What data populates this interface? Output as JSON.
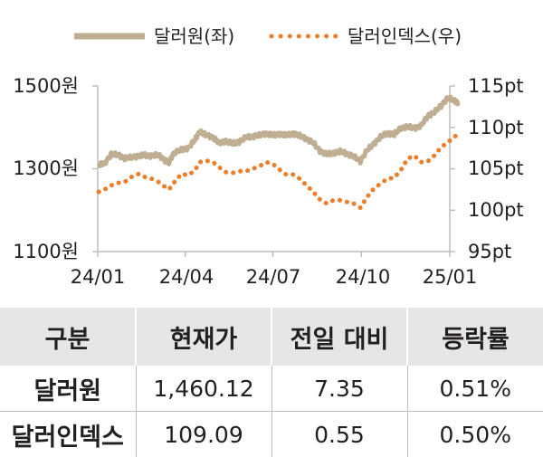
{
  "chart_data": {
    "type": "line",
    "colors": {
      "dollar_won": "#bfae92",
      "dollar_index": "#ee7d2a"
    },
    "legend": {
      "position": "top",
      "dollar_won_label": "달러원(좌)",
      "dollar_index_label": "달러인덱스(우)"
    },
    "x_ticks": [
      "24/01",
      "24/04",
      "24/07",
      "24/10",
      "25/01"
    ],
    "y_left": {
      "ticks": [
        "1500원",
        "1300원",
        "1100원"
      ],
      "range": [
        1100,
        1500
      ]
    },
    "y_right": {
      "ticks": [
        "115pt",
        "110pt",
        "105pt",
        "100pt",
        "95pt"
      ],
      "range": [
        95,
        115
      ]
    },
    "grid": false,
    "series": [
      {
        "name": "달러원(좌)",
        "axis": "left",
        "style": "solid",
        "points": [
          [
            "2024-01-02",
            1310
          ],
          [
            "2024-01-08",
            1312
          ],
          [
            "2024-01-15",
            1335
          ],
          [
            "2024-01-22",
            1334
          ],
          [
            "2024-01-29",
            1325
          ],
          [
            "2024-02-05",
            1328
          ],
          [
            "2024-02-13",
            1331
          ],
          [
            "2024-02-19",
            1333
          ],
          [
            "2024-02-26",
            1331
          ],
          [
            "2024-03-04",
            1334
          ],
          [
            "2024-03-11",
            1320
          ],
          [
            "2024-03-15",
            1315
          ],
          [
            "2024-03-20",
            1338
          ],
          [
            "2024-03-28",
            1346
          ],
          [
            "2024-04-04",
            1350
          ],
          [
            "2024-04-11",
            1370
          ],
          [
            "2024-04-16",
            1390
          ],
          [
            "2024-04-22",
            1382
          ],
          [
            "2024-04-30",
            1376
          ],
          [
            "2024-05-06",
            1362
          ],
          [
            "2024-05-13",
            1367
          ],
          [
            "2024-05-20",
            1361
          ],
          [
            "2024-05-27",
            1365
          ],
          [
            "2024-06-03",
            1376
          ],
          [
            "2024-06-10",
            1378
          ],
          [
            "2024-06-17",
            1381
          ],
          [
            "2024-06-24",
            1385
          ],
          [
            "2024-07-01",
            1381
          ],
          [
            "2024-07-08",
            1384
          ],
          [
            "2024-07-15",
            1381
          ],
          [
            "2024-07-22",
            1385
          ],
          [
            "2024-07-29",
            1380
          ],
          [
            "2024-08-05",
            1372
          ],
          [
            "2024-08-12",
            1363
          ],
          [
            "2024-08-19",
            1343
          ],
          [
            "2024-08-26",
            1335
          ],
          [
            "2024-09-02",
            1338
          ],
          [
            "2024-09-09",
            1342
          ],
          [
            "2024-09-16",
            1336
          ],
          [
            "2024-09-23",
            1330
          ],
          [
            "2024-09-30",
            1318
          ],
          [
            "2024-10-07",
            1345
          ],
          [
            "2024-10-14",
            1360
          ],
          [
            "2024-10-21",
            1377
          ],
          [
            "2024-10-28",
            1386
          ],
          [
            "2024-11-04",
            1383
          ],
          [
            "2024-11-11",
            1398
          ],
          [
            "2024-11-18",
            1402
          ],
          [
            "2024-11-25",
            1398
          ],
          [
            "2024-12-02",
            1404
          ],
          [
            "2024-12-09",
            1427
          ],
          [
            "2024-12-16",
            1437
          ],
          [
            "2024-12-23",
            1452
          ],
          [
            "2024-12-30",
            1472
          ],
          [
            "2025-01-06",
            1464
          ],
          [
            "2025-01-10",
            1460.12
          ]
        ]
      },
      {
        "name": "달러인덱스(우)",
        "axis": "right",
        "style": "dotted",
        "points": [
          [
            "2024-01-02",
            102.2
          ],
          [
            "2024-01-08",
            102.5
          ],
          [
            "2024-01-15",
            103.0
          ],
          [
            "2024-01-22",
            103.3
          ],
          [
            "2024-01-29",
            103.4
          ],
          [
            "2024-02-05",
            104.0
          ],
          [
            "2024-02-13",
            104.4
          ],
          [
            "2024-02-19",
            104.0
          ],
          [
            "2024-02-26",
            103.8
          ],
          [
            "2024-03-04",
            103.4
          ],
          [
            "2024-03-11",
            102.8
          ],
          [
            "2024-03-15",
            102.5
          ],
          [
            "2024-03-20",
            103.3
          ],
          [
            "2024-03-28",
            104.4
          ],
          [
            "2024-04-04",
            104.2
          ],
          [
            "2024-04-11",
            104.8
          ],
          [
            "2024-04-16",
            105.8
          ],
          [
            "2024-04-22",
            106.0
          ],
          [
            "2024-04-30",
            105.8
          ],
          [
            "2024-05-06",
            105.2
          ],
          [
            "2024-05-13",
            104.6
          ],
          [
            "2024-05-20",
            104.5
          ],
          [
            "2024-05-27",
            104.7
          ],
          [
            "2024-06-03",
            104.7
          ],
          [
            "2024-06-10",
            105.0
          ],
          [
            "2024-06-17",
            105.3
          ],
          [
            "2024-06-24",
            105.8
          ],
          [
            "2024-07-01",
            105.6
          ],
          [
            "2024-07-08",
            104.9
          ],
          [
            "2024-07-15",
            104.3
          ],
          [
            "2024-07-22",
            104.3
          ],
          [
            "2024-07-29",
            103.8
          ],
          [
            "2024-08-05",
            103.0
          ],
          [
            "2024-08-12",
            102.2
          ],
          [
            "2024-08-19",
            101.3
          ],
          [
            "2024-08-26",
            100.8
          ],
          [
            "2024-09-02",
            101.2
          ],
          [
            "2024-09-09",
            101.2
          ],
          [
            "2024-09-16",
            101.0
          ],
          [
            "2024-09-23",
            100.8
          ],
          [
            "2024-09-30",
            100.3
          ],
          [
            "2024-10-07",
            101.6
          ],
          [
            "2024-10-14",
            102.6
          ],
          [
            "2024-10-21",
            103.2
          ],
          [
            "2024-10-28",
            103.8
          ],
          [
            "2024-11-04",
            103.9
          ],
          [
            "2024-11-11",
            104.8
          ],
          [
            "2024-11-18",
            106.2
          ],
          [
            "2024-11-25",
            106.6
          ],
          [
            "2024-12-02",
            105.8
          ],
          [
            "2024-12-09",
            105.9
          ],
          [
            "2024-12-16",
            106.6
          ],
          [
            "2024-12-23",
            107.6
          ],
          [
            "2024-12-30",
            108.2
          ],
          [
            "2025-01-06",
            108.9
          ],
          [
            "2025-01-10",
            109.09
          ]
        ]
      }
    ]
  },
  "table": {
    "headers": [
      "구분",
      "현재가",
      "전일 대비",
      "등락률"
    ],
    "rows": [
      [
        "달러원",
        "1,460.12",
        "7.35",
        "0.51%"
      ],
      [
        "달러인덱스",
        "109.09",
        "0.55",
        "0.50%"
      ]
    ]
  }
}
